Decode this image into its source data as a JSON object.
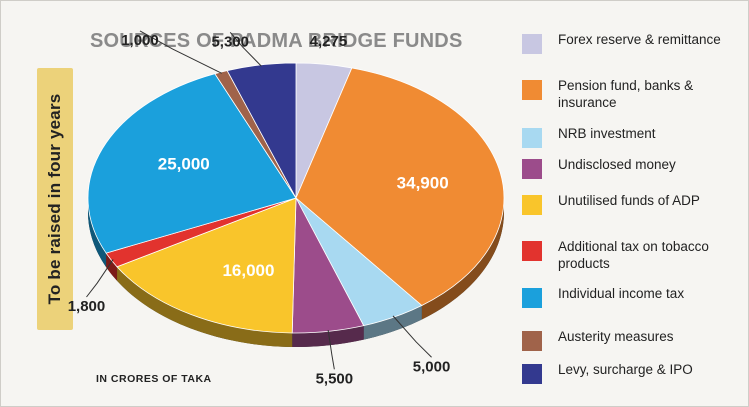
{
  "chart_data": {
    "type": "pie",
    "title": "SOURCES OF PADMA BRIDGE FUNDS",
    "side_label": "To be raised in four years",
    "footnote": "IN CRORES OF TAKA",
    "slices": [
      {
        "label": "Forex reserve & remittance",
        "value": 4275,
        "display": "4,275",
        "color": "#c8c7e2"
      },
      {
        "label": "Pension fund, banks & insurance",
        "value": 34900,
        "display": "34,900",
        "color": "#f08b33"
      },
      {
        "label": "NRB investment",
        "value": 5000,
        "display": "5,000",
        "color": "#a8d9f1"
      },
      {
        "label": "Undisclosed money",
        "value": 5500,
        "display": "5,500",
        "color": "#9c4c8b"
      },
      {
        "label": "Unutilised funds of ADP",
        "value": 16000,
        "display": "16,000",
        "color": "#f9c52b"
      },
      {
        "label": "Additional tax on tobacco products",
        "value": 1800,
        "display": "1,800",
        "color": "#e2332e"
      },
      {
        "label": "Individual income tax",
        "value": 25000,
        "display": "25,000",
        "color": "#1ba0dc"
      },
      {
        "label": "Austerity measures",
        "value": 1000,
        "display": "1,000",
        "color": "#a0634a"
      },
      {
        "label": "Levy, surcharge & IPO",
        "value": 5300,
        "display": "5,300",
        "color": "#33398f"
      }
    ]
  },
  "legend": {
    "items": [
      {
        "label": "Forex reserve & remittance",
        "color": "#c8c7e2"
      },
      {
        "label": "Pension fund, banks & insurance",
        "color": "#f08b33"
      },
      {
        "label": "NRB investment",
        "color": "#a8d9f1"
      },
      {
        "label": "Undisclosed money",
        "color": "#9c4c8b"
      },
      {
        "label": "Unutilised funds of ADP",
        "color": "#f9c52b"
      },
      {
        "label": "Additional tax on tobacco products",
        "color": "#e2332e"
      },
      {
        "label": "Individual income tax",
        "color": "#1ba0dc"
      },
      {
        "label": "Austerity measures",
        "color": "#a0634a"
      },
      {
        "label": "Levy, surcharge & IPO",
        "color": "#33398f"
      }
    ]
  }
}
